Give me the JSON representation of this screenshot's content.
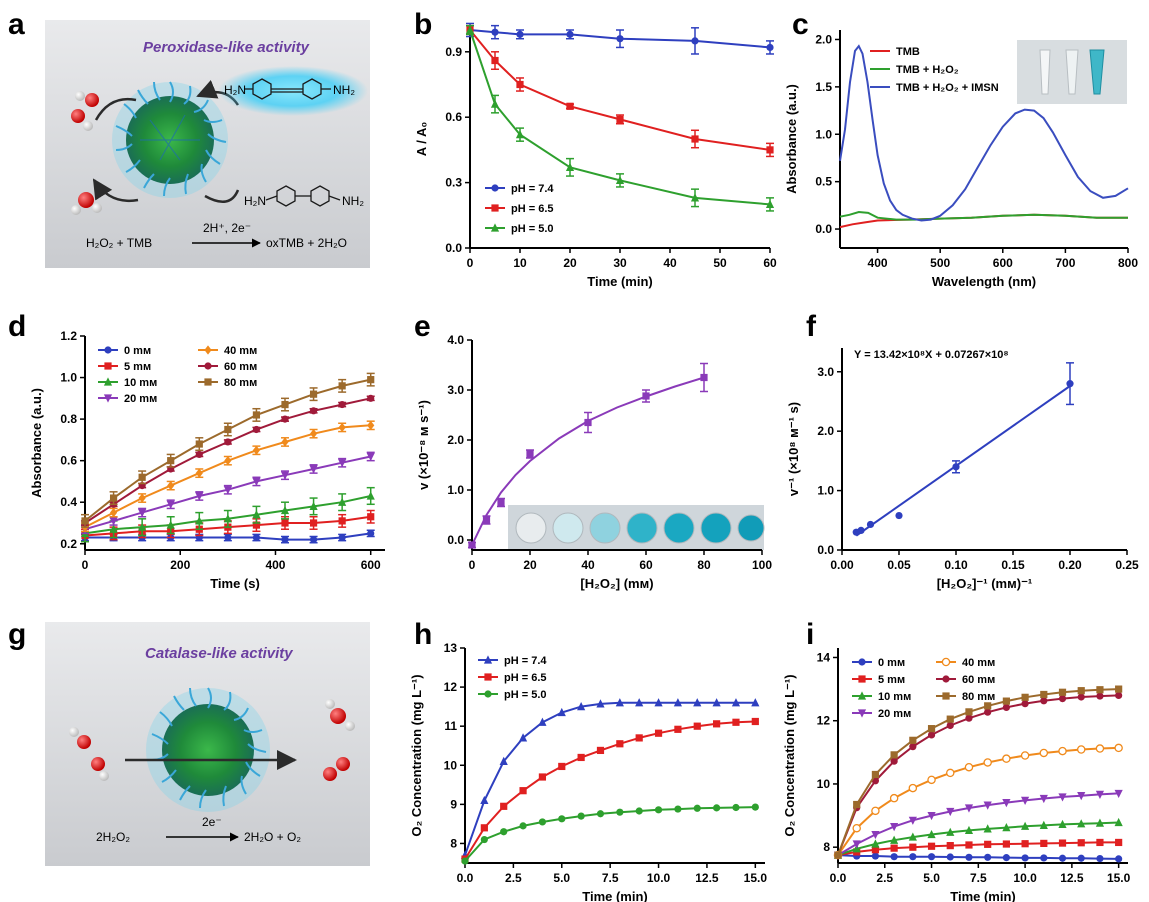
{
  "panels": {
    "a": {
      "label": "a",
      "title": "Peroxidase-like activity",
      "reaction_left": "H₂O₂ + TMB",
      "reaction_arrow": "2H⁺, 2e⁻",
      "reaction_right": "oxTMB + 2H₂O",
      "ox_labels": [
        "H₂N",
        "NH₂"
      ],
      "red_labels": [
        "H₂N",
        "NH₂"
      ]
    },
    "g": {
      "label": "g",
      "title": "Catalase-like activity",
      "reaction_left": "2H₂O₂",
      "reaction_arrow": "2e⁻",
      "reaction_right": "2H₂O + O₂"
    }
  },
  "chart_data": [
    {
      "panel": "b",
      "type": "line",
      "xlabel": "Time (min)",
      "ylabel": "A / A₀",
      "xlim": [
        0,
        60
      ],
      "ylim": [
        0,
        1.0
      ],
      "xticks": [
        0,
        10,
        20,
        30,
        40,
        50,
        60
      ],
      "xtick_labels": [
        "0",
        "10",
        "20",
        "30",
        "40",
        "50",
        "60"
      ],
      "yticks": [
        0,
        0.3,
        0.6,
        0.9
      ],
      "ytick_labels": [
        "0.0",
        "0.3",
        "0.6",
        "0.9"
      ],
      "legend": "bottom-left",
      "series": [
        {
          "name": "pH = 7.4",
          "color": "#2e3fbf",
          "marker": "circle",
          "x": [
            0,
            5,
            10,
            20,
            30,
            45,
            60
          ],
          "y": [
            1.0,
            0.99,
            0.98,
            0.98,
            0.96,
            0.95,
            0.92
          ],
          "err": [
            0.03,
            0.03,
            0.02,
            0.02,
            0.04,
            0.06,
            0.03
          ]
        },
        {
          "name": "pH = 6.5",
          "color": "#e02020",
          "marker": "square",
          "x": [
            0,
            5,
            10,
            20,
            30,
            45,
            60
          ],
          "y": [
            1.0,
            0.86,
            0.75,
            0.65,
            0.59,
            0.5,
            0.45
          ],
          "err": [
            0.02,
            0.04,
            0.03,
            0.01,
            0.02,
            0.04,
            0.03
          ]
        },
        {
          "name": "pH = 5.0",
          "color": "#2ea02e",
          "marker": "triangle",
          "x": [
            0,
            5,
            10,
            20,
            30,
            45,
            60
          ],
          "y": [
            1.0,
            0.66,
            0.52,
            0.37,
            0.31,
            0.23,
            0.2
          ],
          "err": [
            0.02,
            0.04,
            0.03,
            0.04,
            0.03,
            0.04,
            0.03
          ]
        }
      ]
    },
    {
      "panel": "c",
      "type": "line",
      "xlabel": "Wavelength (nm)",
      "ylabel": "Absorbance (a.u.)",
      "xlim": [
        340,
        800
      ],
      "ylim": [
        -0.2,
        2.1
      ],
      "xticks": [
        400,
        500,
        600,
        700,
        800
      ],
      "xtick_labels": [
        "400",
        "500",
        "600",
        "700",
        "800"
      ],
      "yticks": [
        0,
        0.5,
        1.0,
        1.5,
        2.0
      ],
      "ytick_labels": [
        "0.0",
        "0.5",
        "1.0",
        "1.5",
        "2.0"
      ],
      "legend": "top-left",
      "series": [
        {
          "name": "TMB",
          "color": "#e02020",
          "x": [
            340,
            360,
            380,
            400,
            450,
            500,
            550,
            600,
            650,
            700,
            750,
            800
          ],
          "y": [
            0.02,
            0.05,
            0.07,
            0.09,
            0.1,
            0.11,
            0.12,
            0.14,
            0.15,
            0.14,
            0.12,
            0.12
          ]
        },
        {
          "name": "TMB + H₂O₂",
          "color": "#2ea02e",
          "x": [
            340,
            355,
            370,
            385,
            400,
            430,
            460,
            500,
            550,
            600,
            650,
            700,
            750,
            800
          ],
          "y": [
            0.13,
            0.15,
            0.18,
            0.17,
            0.12,
            0.1,
            0.1,
            0.11,
            0.12,
            0.14,
            0.15,
            0.14,
            0.12,
            0.12
          ]
        },
        {
          "name": "TMB + H₂O₂ + IMSN",
          "color": "#3a4dbf",
          "x": [
            340,
            348,
            356,
            364,
            370,
            376,
            384,
            392,
            400,
            410,
            420,
            430,
            440,
            455,
            470,
            485,
            500,
            520,
            540,
            560,
            580,
            600,
            620,
            635,
            650,
            665,
            680,
            700,
            720,
            740,
            760,
            780,
            800
          ],
          "y": [
            0.72,
            1.05,
            1.55,
            1.88,
            1.93,
            1.85,
            1.55,
            1.15,
            0.78,
            0.48,
            0.3,
            0.2,
            0.15,
            0.11,
            0.09,
            0.1,
            0.14,
            0.25,
            0.42,
            0.65,
            0.88,
            1.08,
            1.22,
            1.26,
            1.25,
            1.17,
            1.02,
            0.78,
            0.55,
            0.4,
            0.33,
            0.35,
            0.43
          ]
        }
      ]
    },
    {
      "panel": "d",
      "type": "line",
      "xlabel": "Time (s)",
      "ylabel": "Absorbance (a.u.)",
      "xlim": [
        0,
        630
      ],
      "ylim": [
        0.17,
        1.2
      ],
      "xticks": [
        0,
        200,
        400,
        600
      ],
      "xtick_labels": [
        "0",
        "200",
        "400",
        "600"
      ],
      "yticks": [
        0.2,
        0.4,
        0.6,
        0.8,
        1.0,
        1.2
      ],
      "ytick_labels": [
        "0.2",
        "0.4",
        "0.6",
        "0.8",
        "1.0",
        "1.2"
      ],
      "legend": "top-left",
      "x": [
        0,
        60,
        120,
        180,
        240,
        300,
        360,
        420,
        480,
        540,
        600
      ],
      "series": [
        {
          "name": "0 mм",
          "color": "#2e3fbf",
          "marker": "circle",
          "y": [
            0.23,
            0.23,
            0.23,
            0.23,
            0.23,
            0.23,
            0.23,
            0.22,
            0.22,
            0.23,
            0.25
          ],
          "err": 0.015
        },
        {
          "name": "5  mм",
          "color": "#e02020",
          "marker": "square",
          "y": [
            0.24,
            0.25,
            0.26,
            0.26,
            0.27,
            0.28,
            0.29,
            0.3,
            0.3,
            0.31,
            0.33
          ],
          "err": 0.03
        },
        {
          "name": "10 mм",
          "color": "#2ea02e",
          "marker": "triangle",
          "y": [
            0.25,
            0.27,
            0.28,
            0.29,
            0.31,
            0.32,
            0.34,
            0.36,
            0.38,
            0.4,
            0.43
          ],
          "err": 0.04
        },
        {
          "name": "20 mм",
          "color": "#8a3ab9",
          "marker": "tridown",
          "y": [
            0.27,
            0.31,
            0.35,
            0.39,
            0.43,
            0.46,
            0.5,
            0.53,
            0.56,
            0.59,
            0.62
          ],
          "err": 0.02
        },
        {
          "name": "40 mм",
          "color": "#f08a1c",
          "marker": "diamond",
          "y": [
            0.28,
            0.35,
            0.42,
            0.48,
            0.54,
            0.6,
            0.65,
            0.69,
            0.73,
            0.76,
            0.77
          ],
          "err": 0.02
        },
        {
          "name": "60 mм",
          "color": "#a01a3a",
          "marker": "circle",
          "y": [
            0.3,
            0.39,
            0.48,
            0.56,
            0.63,
            0.69,
            0.75,
            0.8,
            0.84,
            0.87,
            0.9
          ],
          "err": 0.01
        },
        {
          "name": "80 mм",
          "color": "#9c6a2c",
          "marker": "square",
          "y": [
            0.31,
            0.42,
            0.52,
            0.6,
            0.68,
            0.75,
            0.82,
            0.87,
            0.92,
            0.96,
            0.99
          ],
          "err": 0.03
        }
      ]
    },
    {
      "panel": "e",
      "type": "scatter",
      "xlabel": "[H₂O₂] (mм)",
      "ylabel": "v (×10⁻⁸ м s⁻¹)",
      "xlim": [
        0,
        100
      ],
      "ylim": [
        -0.2,
        4.0
      ],
      "xticks": [
        0,
        20,
        40,
        60,
        80,
        100
      ],
      "xtick_labels": [
        "0",
        "20",
        "40",
        "60",
        "80",
        "100"
      ],
      "yticks": [
        0,
        1.0,
        2.0,
        3.0,
        4.0
      ],
      "ytick_labels": [
        "0.0",
        "1.0",
        "2.0",
        "3.0",
        "4.0"
      ],
      "series": [
        {
          "name": "",
          "color": "#8a3ab9",
          "marker": "square",
          "x": [
            0,
            5,
            10,
            20,
            40,
            60,
            80
          ],
          "y": [
            -0.1,
            0.4,
            0.75,
            1.72,
            2.35,
            2.88,
            3.25
          ],
          "err": [
            0.05,
            0.08,
            0.08,
            0.08,
            0.2,
            0.12,
            0.28
          ],
          "fit_x": [
            0,
            5,
            10,
            15,
            20,
            30,
            40,
            50,
            60,
            70,
            80
          ],
          "fit_y": [
            -0.1,
            0.5,
            0.95,
            1.3,
            1.58,
            2.03,
            2.38,
            2.65,
            2.87,
            3.07,
            3.25
          ]
        }
      ]
    },
    {
      "panel": "f",
      "type": "scatter",
      "xlabel": "[H₂O₂]⁻¹ (mм)⁻¹",
      "ylabel": "v⁻¹ (×10⁸ м⁻¹ s)",
      "xlim": [
        0,
        0.25
      ],
      "ylim": [
        0,
        3.4
      ],
      "xticks": [
        0,
        0.05,
        0.1,
        0.15,
        0.2,
        0.25
      ],
      "xtick_labels": [
        "0.00",
        "0.05",
        "0.10",
        "0.15",
        "0.20",
        "0.25"
      ],
      "yticks": [
        0,
        1.0,
        2.0,
        3.0
      ],
      "ytick_labels": [
        "0.0",
        "1.0",
        "2.0",
        "3.0"
      ],
      "annotation": "Y = 13.42×10⁸X + 0.07267×10⁸",
      "series": [
        {
          "name": "",
          "color": "#2e3fbf",
          "marker": "circle",
          "x": [
            0.0125,
            0.0167,
            0.025,
            0.05,
            0.1,
            0.2
          ],
          "y": [
            0.3,
            0.33,
            0.43,
            0.58,
            1.4,
            2.8
          ],
          "err": [
            0,
            0,
            0,
            0,
            0.1,
            0.35
          ],
          "fit_x": [
            0.0125,
            0.2
          ],
          "fit_y": [
            0.24,
            2.76
          ]
        }
      ]
    },
    {
      "panel": "h",
      "type": "line",
      "xlabel": "Time (min)",
      "ylabel": "O₂ Concentration (mg L⁻¹)",
      "xlim": [
        0,
        15.5
      ],
      "ylim": [
        7.5,
        13
      ],
      "xticks": [
        0,
        2.5,
        5,
        7.5,
        10,
        12.5,
        15
      ],
      "xtick_labels": [
        "0.0",
        "2.5",
        "5.0",
        "7.5",
        "10.0",
        "12.5",
        "15.0"
      ],
      "yticks": [
        8,
        9,
        10,
        11,
        12,
        13
      ],
      "ytick_labels": [
        "8",
        "9",
        "10",
        "11",
        "12",
        "13"
      ],
      "legend": "top-left",
      "x": [
        0,
        1,
        2,
        3,
        4,
        5,
        6,
        7,
        8,
        9,
        10,
        11,
        12,
        13,
        14,
        15
      ],
      "series": [
        {
          "name": "pH = 7.4",
          "color": "#2e3fbf",
          "marker": "triangle",
          "y": [
            7.7,
            9.1,
            10.1,
            10.7,
            11.1,
            11.35,
            11.5,
            11.57,
            11.6,
            11.6,
            11.6,
            11.6,
            11.6,
            11.6,
            11.6,
            11.6
          ]
        },
        {
          "name": "pH = 6.5",
          "color": "#e02020",
          "marker": "square",
          "y": [
            7.6,
            8.4,
            8.95,
            9.35,
            9.7,
            9.97,
            10.2,
            10.38,
            10.55,
            10.7,
            10.82,
            10.92,
            11.0,
            11.06,
            11.1,
            11.12
          ]
        },
        {
          "name": "pH = 5.0",
          "color": "#2ea02e",
          "marker": "circle",
          "y": [
            7.55,
            8.1,
            8.3,
            8.45,
            8.55,
            8.63,
            8.7,
            8.76,
            8.8,
            8.83,
            8.86,
            8.88,
            8.9,
            8.91,
            8.92,
            8.93
          ]
        }
      ]
    },
    {
      "panel": "i",
      "type": "line",
      "xlabel": "Time (min)",
      "ylabel": "O₂ Concentration (mg L⁻¹)",
      "xlim": [
        0,
        15.5
      ],
      "ylim": [
        7.5,
        14.3
      ],
      "xticks": [
        0,
        2.5,
        5,
        7.5,
        10,
        12.5,
        15
      ],
      "xtick_labels": [
        "0.0",
        "2.5",
        "5.0",
        "7.5",
        "10.0",
        "12.5",
        "15.0"
      ],
      "yticks": [
        8,
        10,
        12,
        14
      ],
      "ytick_labels": [
        "8",
        "10",
        "12",
        "14"
      ],
      "legend": "top-left",
      "x": [
        0,
        1,
        2,
        3,
        4,
        5,
        6,
        7,
        8,
        9,
        10,
        11,
        12,
        13,
        14,
        15
      ],
      "series": [
        {
          "name": "0 mм",
          "color": "#2e3fbf",
          "marker": "circle",
          "y": [
            7.75,
            7.72,
            7.72,
            7.7,
            7.7,
            7.7,
            7.69,
            7.68,
            7.68,
            7.67,
            7.66,
            7.66,
            7.65,
            7.65,
            7.64,
            7.63
          ]
        },
        {
          "name": "5 mм",
          "color": "#e02020",
          "marker": "square",
          "y": [
            7.75,
            7.85,
            7.92,
            7.97,
            8.0,
            8.03,
            8.05,
            8.07,
            8.09,
            8.1,
            8.11,
            8.12,
            8.13,
            8.14,
            8.15,
            8.15
          ]
        },
        {
          "name": "10 mм",
          "color": "#2ea02e",
          "marker": "triangle",
          "y": [
            7.75,
            7.95,
            8.1,
            8.22,
            8.32,
            8.4,
            8.47,
            8.53,
            8.58,
            8.62,
            8.66,
            8.69,
            8.72,
            8.74,
            8.76,
            8.78
          ]
        },
        {
          "name": "20 mм",
          "color": "#8a3ab9",
          "marker": "tridown",
          "y": [
            7.75,
            8.1,
            8.4,
            8.65,
            8.85,
            9.0,
            9.13,
            9.24,
            9.33,
            9.41,
            9.48,
            9.54,
            9.59,
            9.63,
            9.67,
            9.7
          ]
        },
        {
          "name": "40 mм",
          "color": "#f08a1c",
          "marker": "diamondopen",
          "y": [
            7.75,
            8.6,
            9.15,
            9.55,
            9.87,
            10.13,
            10.35,
            10.53,
            10.68,
            10.8,
            10.9,
            10.98,
            11.04,
            11.09,
            11.12,
            11.14
          ]
        },
        {
          "name": "60 mм",
          "color": "#a01a3a",
          "marker": "circle",
          "y": [
            7.75,
            9.25,
            10.1,
            10.72,
            11.18,
            11.55,
            11.85,
            12.08,
            12.27,
            12.42,
            12.54,
            12.63,
            12.7,
            12.75,
            12.78,
            12.8
          ]
        },
        {
          "name": "80 mм",
          "color": "#9c6a2c",
          "marker": "square",
          "y": [
            7.75,
            9.35,
            10.3,
            10.92,
            11.38,
            11.75,
            12.05,
            12.28,
            12.47,
            12.62,
            12.74,
            12.83,
            12.9,
            12.95,
            12.98,
            13.0
          ]
        }
      ]
    }
  ]
}
